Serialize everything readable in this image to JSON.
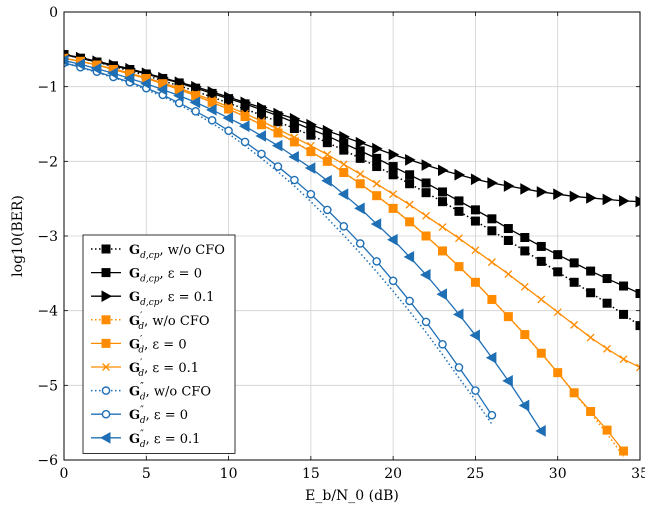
{
  "chart_data": {
    "type": "line",
    "xlabel": "E_b/N_0 (dB)",
    "ylabel": "log10(BER)",
    "xlim": [
      0,
      35
    ],
    "ylim": [
      -6,
      0
    ],
    "xticks": [
      0,
      5,
      10,
      15,
      20,
      25,
      30,
      35
    ],
    "yticks": [
      0,
      -1,
      -2,
      -3,
      -4,
      -5,
      -6
    ],
    "xtick_labels": [
      "0",
      "5",
      "10",
      "15",
      "20",
      "25",
      "30",
      "35"
    ],
    "ytick_labels": [
      "0",
      "−1",
      "−2",
      "−3",
      "−4",
      "−5",
      "−6"
    ],
    "grid": true,
    "legend_position": "bottom-left",
    "colors": {
      "black": "#000000",
      "orange": "#ff8c00",
      "blue": "#1f6fb5"
    },
    "series": [
      {
        "name": "G_{d,cp}, w/o CFO",
        "legend": {
          "sym": "G",
          "sub": "d,cp",
          "rest": ", w/o CFO"
        },
        "color": "#000000",
        "dash": "dotted",
        "marker": "square",
        "filled": true,
        "markers_shown": true,
        "x": [
          0,
          1,
          2,
          3,
          4,
          5,
          6,
          7,
          8,
          9,
          10,
          11,
          12,
          13,
          14,
          15,
          16,
          17,
          18,
          19,
          20,
          21,
          22,
          23,
          24,
          25,
          26,
          27,
          28,
          29,
          30,
          31,
          32,
          33,
          34,
          35
        ],
        "y": [
          -0.57,
          -0.62,
          -0.67,
          -0.73,
          -0.79,
          -0.85,
          -0.92,
          -0.99,
          -1.06,
          -1.14,
          -1.22,
          -1.3,
          -1.38,
          -1.47,
          -1.56,
          -1.65,
          -1.75,
          -1.85,
          -1.96,
          -2.07,
          -2.18,
          -2.3,
          -2.42,
          -2.54,
          -2.67,
          -2.8,
          -2.93,
          -3.06,
          -3.2,
          -3.34,
          -3.48,
          -3.62,
          -3.76,
          -3.9,
          -4.05,
          -4.2
        ]
      },
      {
        "name": "G_{d,cp}, ε = 0",
        "legend": {
          "sym": "G",
          "sub": "d,cp",
          "rest": ", ε = 0"
        },
        "color": "#000000",
        "dash": "solid",
        "marker": "square",
        "filled": true,
        "markers_shown": true,
        "x": [
          0,
          1,
          2,
          3,
          4,
          5,
          6,
          7,
          8,
          9,
          10,
          11,
          12,
          13,
          14,
          15,
          16,
          17,
          18,
          19,
          20,
          21,
          22,
          23,
          24,
          25,
          26,
          27,
          28,
          29,
          30,
          31,
          32,
          33,
          34,
          35
        ],
        "y": [
          -0.57,
          -0.62,
          -0.67,
          -0.72,
          -0.77,
          -0.83,
          -0.89,
          -0.95,
          -1.02,
          -1.09,
          -1.16,
          -1.23,
          -1.31,
          -1.39,
          -1.48,
          -1.57,
          -1.66,
          -1.76,
          -1.86,
          -1.96,
          -2.07,
          -2.18,
          -2.29,
          -2.41,
          -2.53,
          -2.65,
          -2.77,
          -2.9,
          -3.02,
          -3.14,
          -3.25,
          -3.36,
          -3.47,
          -3.57,
          -3.67,
          -3.77
        ]
      },
      {
        "name": "G_{d,cp}, ε = 0.1",
        "legend": {
          "sym": "G",
          "sub": "d,cp",
          "rest": ", ε = 0.1"
        },
        "color": "#000000",
        "dash": "solid",
        "marker": "triangle-right",
        "filled": true,
        "markers_shown": true,
        "x": [
          0,
          1,
          2,
          3,
          4,
          5,
          6,
          7,
          8,
          9,
          10,
          11,
          12,
          13,
          14,
          15,
          16,
          17,
          18,
          19,
          20,
          21,
          22,
          23,
          24,
          25,
          26,
          27,
          28,
          29,
          30,
          31,
          32,
          33,
          34,
          35
        ],
        "y": [
          -0.57,
          -0.61,
          -0.66,
          -0.71,
          -0.76,
          -0.82,
          -0.88,
          -0.94,
          -1.0,
          -1.07,
          -1.14,
          -1.21,
          -1.28,
          -1.36,
          -1.43,
          -1.51,
          -1.59,
          -1.67,
          -1.75,
          -1.83,
          -1.91,
          -1.98,
          -2.05,
          -2.12,
          -2.18,
          -2.24,
          -2.29,
          -2.33,
          -2.37,
          -2.41,
          -2.44,
          -2.47,
          -2.49,
          -2.51,
          -2.53,
          -2.54
        ]
      },
      {
        "name": "G'_d, w/o CFO",
        "legend": {
          "sym": "G",
          "sub": "d",
          "prime": "′",
          "rest": ", w/o CFO"
        },
        "color": "#ff8c00",
        "dash": "dotted",
        "marker": "square",
        "filled": true,
        "markers_shown": false,
        "x": [
          0,
          1,
          2,
          3,
          4,
          5,
          6,
          7,
          8,
          9,
          10,
          11,
          12,
          13,
          14,
          15,
          16,
          17,
          18,
          19,
          20,
          21,
          22,
          23,
          24,
          25,
          26,
          27,
          28,
          29,
          30,
          31,
          32,
          33,
          34
        ],
        "y": [
          -0.62,
          -0.66,
          -0.71,
          -0.77,
          -0.83,
          -0.89,
          -0.96,
          -1.04,
          -1.12,
          -1.21,
          -1.3,
          -1.4,
          -1.51,
          -1.62,
          -1.74,
          -1.87,
          -2.0,
          -2.15,
          -2.3,
          -2.46,
          -2.63,
          -2.81,
          -3.0,
          -3.2,
          -3.41,
          -3.62,
          -3.85,
          -4.08,
          -4.32,
          -4.57,
          -4.83,
          -5.1,
          -5.37,
          -5.65,
          -5.95
        ]
      },
      {
        "name": "G'_d, ε = 0",
        "legend": {
          "sym": "G",
          "sub": "d",
          "prime": "′",
          "rest": ", ε = 0"
        },
        "color": "#ff8c00",
        "dash": "solid",
        "marker": "square",
        "filled": true,
        "markers_shown": true,
        "x": [
          0,
          1,
          2,
          3,
          4,
          5,
          6,
          7,
          8,
          9,
          10,
          11,
          12,
          13,
          14,
          15,
          16,
          17,
          18,
          19,
          20,
          21,
          22,
          23,
          24,
          25,
          26,
          27,
          28,
          29,
          30,
          31,
          32,
          33,
          34
        ],
        "y": [
          -0.62,
          -0.66,
          -0.71,
          -0.77,
          -0.83,
          -0.89,
          -0.96,
          -1.04,
          -1.12,
          -1.21,
          -1.3,
          -1.4,
          -1.51,
          -1.62,
          -1.74,
          -1.87,
          -2.0,
          -2.15,
          -2.3,
          -2.46,
          -2.63,
          -2.81,
          -3.0,
          -3.2,
          -3.41,
          -3.62,
          -3.85,
          -4.08,
          -4.32,
          -4.57,
          -4.83,
          -5.1,
          -5.35,
          -5.6,
          -5.88
        ]
      },
      {
        "name": "G'_d, ε = 0.1",
        "legend": {
          "sym": "G",
          "sub": "d",
          "prime": "′",
          "rest": ", ε = 0.1"
        },
        "color": "#ff8c00",
        "dash": "solid",
        "marker": "x",
        "filled": false,
        "markers_shown": true,
        "x": [
          0,
          1,
          2,
          3,
          4,
          5,
          6,
          7,
          8,
          9,
          10,
          11,
          12,
          13,
          14,
          15,
          16,
          17,
          18,
          19,
          20,
          21,
          22,
          23,
          24,
          25,
          26,
          27,
          28,
          29,
          30,
          31,
          32,
          33,
          34,
          35
        ],
        "y": [
          -0.62,
          -0.66,
          -0.71,
          -0.76,
          -0.82,
          -0.88,
          -0.95,
          -1.02,
          -1.1,
          -1.18,
          -1.27,
          -1.36,
          -1.46,
          -1.57,
          -1.68,
          -1.79,
          -1.91,
          -2.04,
          -2.17,
          -2.3,
          -2.44,
          -2.58,
          -2.73,
          -2.88,
          -3.03,
          -3.19,
          -3.35,
          -3.51,
          -3.68,
          -3.85,
          -4.02,
          -4.19,
          -4.36,
          -4.51,
          -4.65,
          -4.76
        ]
      },
      {
        "name": "G''_d, w/o CFO",
        "legend": {
          "sym": "G",
          "sub": "d",
          "prime": "″",
          "rest": ", w/o CFO"
        },
        "color": "#1f6fb5",
        "dash": "dotted",
        "marker": "circle",
        "filled": false,
        "markers_shown": false,
        "x": [
          0,
          1,
          2,
          3,
          4,
          5,
          6,
          7,
          8,
          9,
          10,
          11,
          12,
          13,
          14,
          15,
          16,
          17,
          18,
          19,
          20,
          21,
          22,
          23,
          24,
          25,
          26
        ],
        "y": [
          -0.68,
          -0.74,
          -0.81,
          -0.88,
          -0.95,
          -1.04,
          -1.13,
          -1.24,
          -1.36,
          -1.49,
          -1.63,
          -1.79,
          -1.96,
          -2.14,
          -2.33,
          -2.54,
          -2.76,
          -2.99,
          -3.23,
          -3.48,
          -3.74,
          -4.01,
          -4.29,
          -4.59,
          -4.9,
          -5.2,
          -5.52
        ]
      },
      {
        "name": "G''_d, ε = 0",
        "legend": {
          "sym": "G",
          "sub": "d",
          "prime": "″",
          "rest": ", ε = 0"
        },
        "color": "#1f6fb5",
        "dash": "solid",
        "marker": "circle",
        "filled": false,
        "markers_shown": true,
        "x": [
          0,
          1,
          2,
          3,
          4,
          5,
          6,
          7,
          8,
          9,
          10,
          11,
          12,
          13,
          14,
          15,
          16,
          17,
          18,
          19,
          20,
          21,
          22,
          23,
          24,
          25,
          26
        ],
        "y": [
          -0.68,
          -0.74,
          -0.8,
          -0.87,
          -0.94,
          -1.02,
          -1.11,
          -1.22,
          -1.33,
          -1.45,
          -1.59,
          -1.74,
          -1.9,
          -2.07,
          -2.25,
          -2.44,
          -2.65,
          -2.87,
          -3.1,
          -3.34,
          -3.6,
          -3.87,
          -4.15,
          -4.45,
          -4.76,
          -5.07,
          -5.4
        ]
      },
      {
        "name": "G''_d, ε = 0.1",
        "legend": {
          "sym": "G",
          "sub": "d",
          "prime": "″",
          "rest": ", ε = 0.1"
        },
        "color": "#1f6fb5",
        "dash": "solid",
        "marker": "triangle-left",
        "filled": true,
        "markers_shown": true,
        "x": [
          0,
          1,
          2,
          3,
          4,
          5,
          6,
          7,
          8,
          9,
          10,
          11,
          12,
          13,
          14,
          15,
          16,
          17,
          18,
          19,
          20,
          21,
          22,
          23,
          24,
          25,
          26,
          27,
          28,
          29
        ],
        "y": [
          -0.65,
          -0.7,
          -0.76,
          -0.82,
          -0.89,
          -0.96,
          -1.04,
          -1.12,
          -1.21,
          -1.31,
          -1.42,
          -1.53,
          -1.66,
          -1.79,
          -1.94,
          -2.09,
          -2.26,
          -2.44,
          -2.63,
          -2.84,
          -3.05,
          -3.28,
          -3.52,
          -3.78,
          -4.05,
          -4.33,
          -4.63,
          -4.94,
          -5.27,
          -5.61
        ]
      }
    ]
  }
}
